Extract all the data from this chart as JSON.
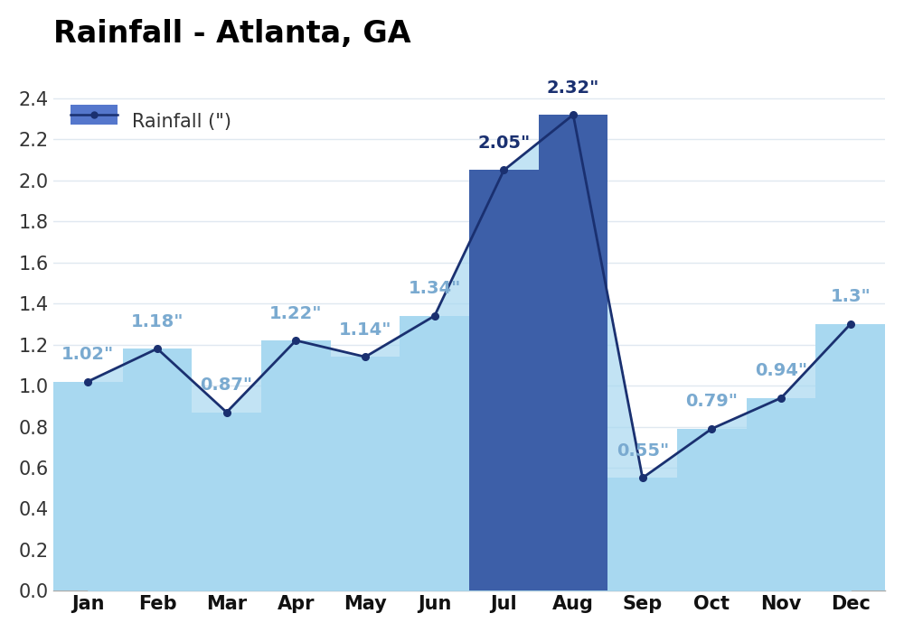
{
  "months": [
    "Jan",
    "Feb",
    "Mar",
    "Apr",
    "May",
    "Jun",
    "Jul",
    "Aug",
    "Sep",
    "Oct",
    "Nov",
    "Dec"
  ],
  "values": [
    1.02,
    1.18,
    0.87,
    1.22,
    1.14,
    1.34,
    2.05,
    2.32,
    0.55,
    0.79,
    0.94,
    1.3
  ],
  "fill_light": "#a8d8f0",
  "fill_dark": "#3d5fa8",
  "line_color": "#1a3070",
  "dot_color": "#1a3070",
  "title": "Rainfall - Atlanta, GA",
  "legend_label": "Rainfall (\")",
  "legend_fill": "#5577cc",
  "ylim": [
    0,
    2.6
  ],
  "yticks": [
    0.0,
    0.2,
    0.4,
    0.6,
    0.8,
    1.0,
    1.2,
    1.4,
    1.6,
    1.8,
    2.0,
    2.2,
    2.4
  ],
  "title_fontsize": 24,
  "tick_fontsize": 15,
  "annotation_fontsize": 14,
  "background_color": "#ffffff",
  "grid_color": "#e0e8f0",
  "annotation_color_dark": "#1a3070",
  "annotation_color_light": "#7aaad0",
  "dark_months_idx": [
    6,
    7
  ],
  "light_months_idx": [
    0,
    1,
    2,
    3,
    4,
    5,
    8,
    9,
    10,
    11
  ]
}
